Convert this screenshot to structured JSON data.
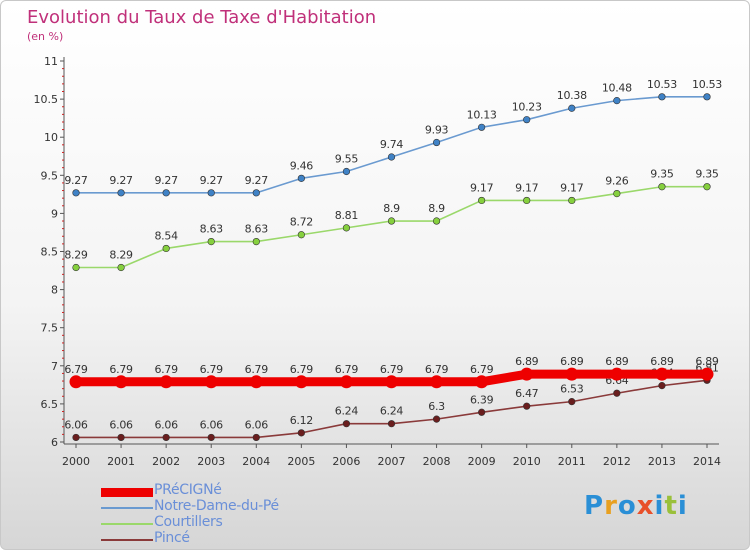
{
  "title": "Evolution du Taux de Taxe d'Habitation",
  "subtitle": "(en %)",
  "logo": {
    "text": "Proxiti",
    "letter_colors": [
      "#2a8fd6",
      "#e8a020",
      "#2a8fd6",
      "#e8502a",
      "#2a8fd6",
      "#9ac03a",
      "#2a8fd6"
    ]
  },
  "chart_data": {
    "type": "line",
    "x": [
      2000,
      2001,
      2002,
      2003,
      2004,
      2005,
      2006,
      2007,
      2008,
      2009,
      2010,
      2011,
      2012,
      2013,
      2014
    ],
    "x_tick_labels": [
      "2000",
      "2001",
      "2002",
      "2003",
      "2004",
      "2005",
      "2006",
      "2007",
      "2008",
      "2009",
      "2010",
      "2011",
      "2012",
      "2013",
      "2014"
    ],
    "ylim": [
      6,
      11
    ],
    "y_ticks": [
      6,
      6.5,
      7,
      7.5,
      8,
      8.5,
      9,
      9.5,
      10,
      10.5,
      11
    ],
    "y_tick_labels": [
      "6",
      "6.5",
      "7",
      "7.5",
      "8",
      "8.5",
      "9",
      "9.5",
      "10",
      "10.5",
      "11"
    ],
    "grid": false,
    "legend_position": "bottom-left",
    "series": [
      {
        "name": "PRéCIGNé",
        "color": "#ee0000",
        "marker_color": "#ee0000",
        "emphasis": true,
        "values": [
          6.79,
          6.79,
          6.79,
          6.79,
          6.79,
          6.79,
          6.79,
          6.79,
          6.79,
          6.79,
          6.89,
          6.89,
          6.89,
          6.89,
          6.89
        ],
        "labels": [
          "6.79",
          "6.79",
          "6.79",
          "6.79",
          "6.79",
          "6.79",
          "6.79",
          "6.79",
          "6.79",
          "6.79",
          "6.89",
          "6.89",
          "6.89",
          "6.89",
          "6.89"
        ]
      },
      {
        "name": "Notre-Dame-du-Pé",
        "color": "#6a9ad0",
        "marker_color": "#3f82c6",
        "emphasis": false,
        "values": [
          9.27,
          9.27,
          9.27,
          9.27,
          9.27,
          9.46,
          9.55,
          9.74,
          9.93,
          10.13,
          10.23,
          10.38,
          10.48,
          10.53,
          10.53
        ],
        "labels": [
          "9.27",
          "9.27",
          "9.27",
          "9.27",
          "9.27",
          "9.46",
          "9.55",
          "9.74",
          "9.93",
          "10.13",
          "10.23",
          "10.38",
          "10.48",
          "10.53",
          "10.53"
        ]
      },
      {
        "name": "Courtillers",
        "color": "#9ad86a",
        "marker_color": "#86d03e",
        "emphasis": false,
        "values": [
          8.29,
          8.29,
          8.54,
          8.63,
          8.63,
          8.72,
          8.81,
          8.9,
          8.9,
          9.17,
          9.17,
          9.17,
          9.26,
          9.35,
          9.35
        ],
        "labels": [
          "8.29",
          "8.29",
          "8.54",
          "8.63",
          "8.63",
          "8.72",
          "8.81",
          "8.9",
          "8.9",
          "9.17",
          "9.17",
          "9.17",
          "9.26",
          "9.35",
          "9.35"
        ]
      },
      {
        "name": "Pincé",
        "color": "#8a3a3a",
        "marker_color": "#6a1e1e",
        "emphasis": false,
        "values": [
          6.06,
          6.06,
          6.06,
          6.06,
          6.06,
          6.12,
          6.24,
          6.24,
          6.3,
          6.39,
          6.47,
          6.53,
          6.64,
          6.74,
          6.81
        ],
        "labels": [
          "6.06",
          "6.06",
          "6.06",
          "6.06",
          "6.06",
          "6.12",
          "6.24",
          "6.24",
          "6.3",
          "6.39",
          "6.47",
          "6.53",
          "6.64",
          "6.74",
          "6.81"
        ]
      }
    ]
  }
}
